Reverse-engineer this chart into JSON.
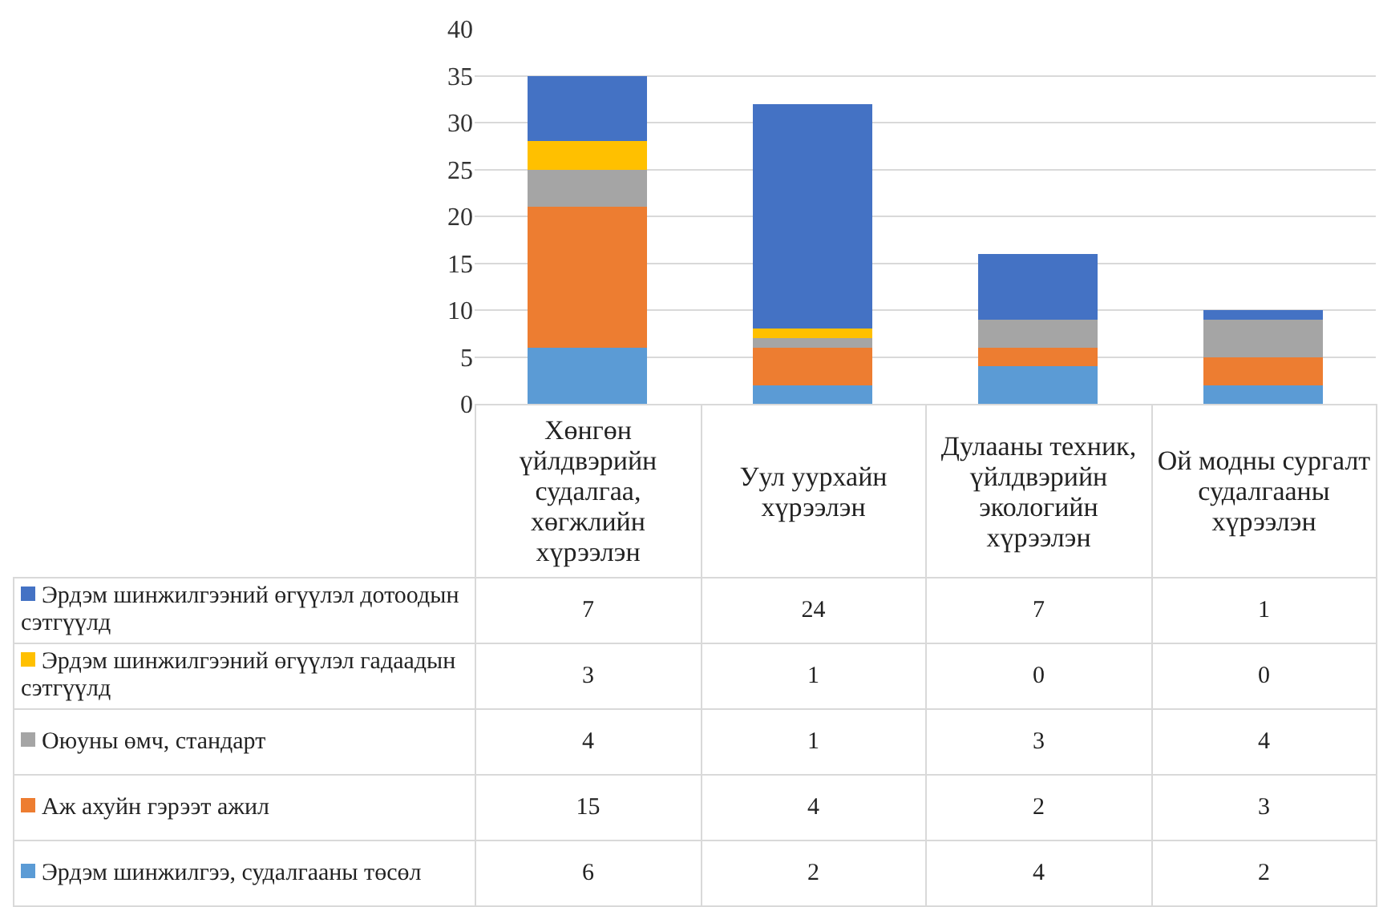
{
  "chart_data": {
    "type": "bar",
    "stacked": true,
    "categories": [
      "Хөнгөн үйлдвэрийн судалгаа, хөгжлийн хүрээлэн",
      "Уул уурхайн хүрээлэн",
      "Дулааны техник, үйлдвэрийн экологийн хүрээлэн",
      "Ой модны сургалт судалгааны хүрээлэн"
    ],
    "series": [
      {
        "name": "Эрдэм шинжилгээ, судалгааны төсөл",
        "color": "#5b9bd5",
        "values": [
          6,
          2,
          4,
          2
        ]
      },
      {
        "name": "Аж ахуйн гэрээт ажил",
        "color": "#ed7d31",
        "values": [
          15,
          4,
          2,
          3
        ]
      },
      {
        "name": "Оюуны өмч, стандарт",
        "color": "#a5a5a5",
        "values": [
          4,
          1,
          3,
          4
        ]
      },
      {
        "name": "Эрдэм шинжилгээний өгүүлэл гадаадын сэтгүүлд",
        "color": "#ffc000",
        "values": [
          3,
          1,
          0,
          0
        ]
      },
      {
        "name": "Эрдэм шинжилгээний өгүүлэл дотоодын сэтгүүлд",
        "color": "#4472c4",
        "values": [
          7,
          24,
          7,
          1
        ]
      }
    ],
    "ylim": [
      0,
      40
    ],
    "yticks": [
      0,
      5,
      10,
      15,
      20,
      25,
      30,
      35,
      40
    ],
    "grid": "y",
    "data_labels": true,
    "legend": "bottom"
  }
}
